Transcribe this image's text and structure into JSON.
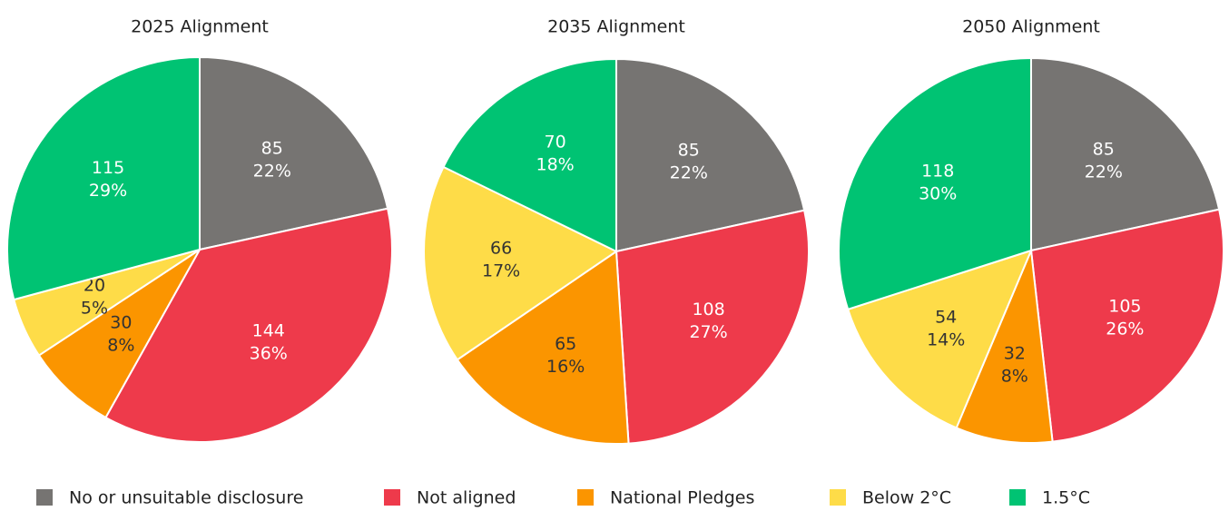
{
  "chart_data": [
    {
      "type": "pie",
      "title": "2025 Alignment",
      "values": [
        85,
        144,
        30,
        20,
        115
      ],
      "percent_labels": [
        "22%",
        "36%",
        "8%",
        "5%",
        "29%"
      ]
    },
    {
      "type": "pie",
      "title": "2035 Alignment",
      "values": [
        85,
        108,
        65,
        66,
        70
      ],
      "percent_labels": [
        "22%",
        "27%",
        "16%",
        "17%",
        "18%"
      ]
    },
    {
      "type": "pie",
      "title": "2050 Alignment",
      "values": [
        85,
        105,
        32,
        54,
        118
      ],
      "percent_labels": [
        "22%",
        "26%",
        "8%",
        "14%",
        "30%"
      ]
    }
  ],
  "legend": {
    "categories": [
      "No or unsuitable disclosure",
      "Not aligned",
      "National Pledges",
      "Below 2°C",
      "1.5°C"
    ],
    "colors": [
      "#767472",
      "#ee3a4b",
      "#fb9500",
      "#fedc48",
      "#00c373"
    ],
    "label_colors": [
      "#ffffff",
      "#ffffff",
      "#333333",
      "#333333",
      "#ffffff"
    ]
  }
}
